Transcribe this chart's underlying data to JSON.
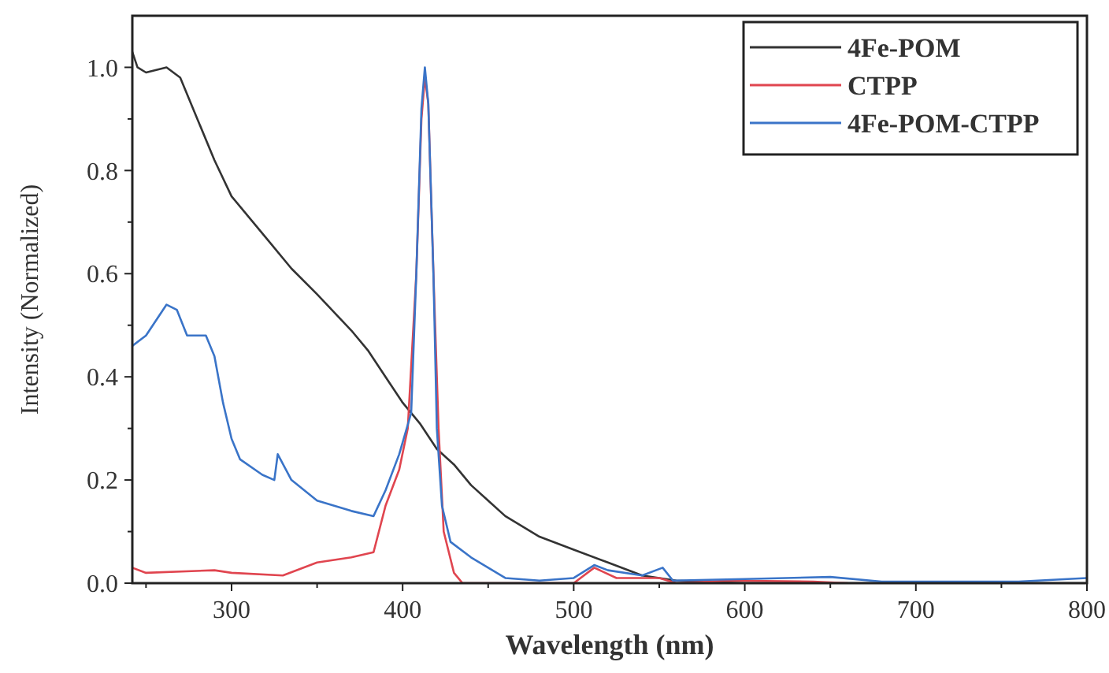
{
  "chart_data": {
    "type": "line",
    "xlabel": "Wavelength (nm)",
    "ylabel": "Intensity (Normalized)",
    "xlim": [
      242,
      800
    ],
    "ylim": [
      0,
      1.1
    ],
    "xticks": [
      {
        "value": 250,
        "label": null
      },
      300,
      {
        "value": 350,
        "label": null
      },
      400,
      {
        "value": 450,
        "label": null
      },
      500,
      {
        "value": 550,
        "label": null
      },
      600,
      {
        "value": 650,
        "label": null
      },
      700,
      {
        "value": 750,
        "label": null
      },
      800
    ],
    "yticks": [
      {
        "value": 0,
        "label": "0.0"
      },
      {
        "value": 0.1,
        "label": null
      },
      0.2,
      {
        "value": 0.3,
        "label": null
      },
      0.4,
      {
        "value": 0.5,
        "label": null
      },
      0.6,
      {
        "value": 0.7,
        "label": null
      },
      0.8,
      {
        "value": 0.9,
        "label": null
      },
      {
        "value": 1,
        "label": "1.0"
      }
    ],
    "legend": "top right",
    "grid": false,
    "marker": "none",
    "line_style": "solid",
    "series": [
      {
        "name": "4Fe-POM",
        "color": "#333333",
        "x": [
          242,
          245,
          250,
          262,
          270,
          280,
          290,
          300,
          320,
          335,
          350,
          370,
          380,
          390,
          400,
          410,
          420,
          430,
          440,
          450,
          460,
          480,
          500,
          520,
          540,
          560,
          600,
          800
        ],
        "values": [
          1.03,
          1.0,
          0.99,
          1.0,
          0.98,
          0.9,
          0.82,
          0.75,
          0.67,
          0.61,
          0.56,
          0.49,
          0.45,
          0.4,
          0.35,
          0.31,
          0.26,
          0.23,
          0.19,
          0.16,
          0.13,
          0.09,
          0.065,
          0.04,
          0.015,
          0.005,
          0,
          0
        ]
      },
      {
        "name": "CTPP",
        "color": "#e0454f",
        "x": [
          242,
          250,
          290,
          300,
          330,
          350,
          370,
          383,
          390,
          398,
          403,
          408,
          411,
          413,
          415,
          418,
          421,
          424,
          430,
          435,
          500,
          512,
          525,
          540,
          550,
          560,
          590,
          640,
          660
        ],
        "values": [
          0.03,
          0.02,
          0.025,
          0.02,
          0.015,
          0.04,
          0.05,
          0.06,
          0.15,
          0.22,
          0.3,
          0.6,
          0.9,
          0.98,
          0.93,
          0.6,
          0.3,
          0.1,
          0.02,
          0,
          0,
          0.03,
          0.01,
          0.01,
          0.01,
          0,
          0.005,
          0.003,
          0
        ]
      },
      {
        "name": "4Fe-POM-CTPP",
        "color": "#3a74c8",
        "x": [
          242,
          250,
          262,
          268,
          274,
          285,
          290,
          295,
          300,
          305,
          318,
          325,
          327,
          335,
          350,
          370,
          383,
          390,
          398,
          405,
          408,
          411,
          413,
          415,
          418,
          420,
          423,
          428,
          440,
          460,
          480,
          500,
          512,
          520,
          540,
          552,
          558,
          600,
          650,
          680,
          760,
          800
        ],
        "values": [
          0.46,
          0.48,
          0.54,
          0.53,
          0.48,
          0.48,
          0.44,
          0.35,
          0.28,
          0.24,
          0.21,
          0.2,
          0.25,
          0.2,
          0.16,
          0.14,
          0.13,
          0.18,
          0.25,
          0.33,
          0.6,
          0.92,
          1.0,
          0.93,
          0.6,
          0.3,
          0.15,
          0.08,
          0.05,
          0.01,
          0.005,
          0.01,
          0.035,
          0.025,
          0.015,
          0.03,
          0.005,
          0.008,
          0.012,
          0.003,
          0.003,
          0.01
        ]
      }
    ]
  }
}
